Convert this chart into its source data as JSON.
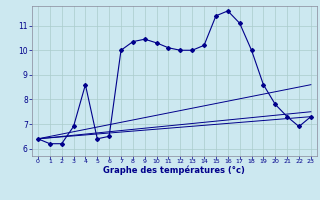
{
  "xlabel": "Graphe des températures (°c)",
  "background_color": "#cce8f0",
  "line_color": "#00008b",
  "grid_color": "#aacccc",
  "xlim": [
    -0.5,
    23.5
  ],
  "ylim": [
    5.7,
    11.8
  ],
  "yticks": [
    6,
    7,
    8,
    9,
    10,
    11
  ],
  "xticks": [
    0,
    1,
    2,
    3,
    4,
    5,
    6,
    7,
    8,
    9,
    10,
    11,
    12,
    13,
    14,
    15,
    16,
    17,
    18,
    19,
    20,
    21,
    22,
    23
  ],
  "series1_x": [
    0,
    1,
    2,
    3,
    4,
    5,
    6,
    7,
    8,
    9,
    10,
    11,
    12,
    13,
    14,
    15,
    16,
    17,
    18,
    19,
    20,
    21,
    22,
    23
  ],
  "series1_y": [
    6.4,
    6.2,
    6.2,
    6.9,
    8.6,
    6.4,
    6.5,
    10.0,
    10.35,
    10.45,
    10.3,
    10.1,
    10.0,
    10.0,
    10.2,
    11.4,
    11.6,
    11.1,
    10.0,
    8.6,
    7.8,
    7.3,
    6.9,
    7.3
  ],
  "line2_x": [
    0,
    23
  ],
  "line2_y": [
    6.4,
    7.3
  ],
  "line3_x": [
    0,
    23
  ],
  "line3_y": [
    6.4,
    7.5
  ],
  "line4_x": [
    0,
    23
  ],
  "line4_y": [
    6.4,
    8.6
  ]
}
